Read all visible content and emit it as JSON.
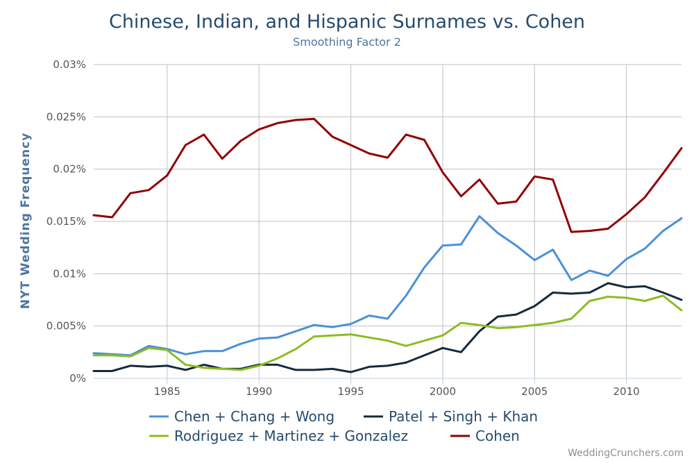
{
  "chart_data": {
    "type": "line",
    "title": "Chinese, Indian, and Hispanic Surnames vs. Cohen",
    "subtitle": "Smoothing Factor 2",
    "ylabel": "NYT Wedding Frequency",
    "xlabel": "",
    "xlim": [
      1981,
      2013
    ],
    "ylim": [
      0,
      0.03
    ],
    "x_ticks": [
      1985,
      1990,
      1995,
      2000,
      2005,
      2010
    ],
    "x_tick_labels": [
      "1985",
      "1990",
      "1995",
      "2000",
      "2005",
      "2010"
    ],
    "y_ticks": [
      0,
      0.005,
      0.01,
      0.015,
      0.02,
      0.025,
      0.03
    ],
    "y_tick_labels": [
      "0%",
      "0.005%",
      "0.01%",
      "0.015%",
      "0.02%",
      "0.025%",
      "0.03%"
    ],
    "grid": true,
    "legend_position": "bottom",
    "x": [
      1981,
      1982,
      1983,
      1984,
      1985,
      1986,
      1987,
      1988,
      1989,
      1990,
      1991,
      1992,
      1993,
      1994,
      1995,
      1996,
      1997,
      1998,
      1999,
      2000,
      2001,
      2002,
      2003,
      2004,
      2005,
      2006,
      2007,
      2008,
      2009,
      2010,
      2011,
      2012,
      2013
    ],
    "series": [
      {
        "name": "Chen + Chang + Wong",
        "color": "#4a90d9",
        "values": [
          0.0024,
          0.0023,
          0.0022,
          0.0031,
          0.0028,
          0.0023,
          0.0026,
          0.0026,
          0.0033,
          0.0038,
          0.0039,
          0.0045,
          0.0051,
          0.0049,
          0.0052,
          0.006,
          0.0057,
          0.0079,
          0.0106,
          0.0127,
          0.0128,
          0.0155,
          0.0139,
          0.0127,
          0.0113,
          0.0123,
          0.0094,
          0.0103,
          0.0098,
          0.0114,
          0.0124,
          0.0141,
          0.0153
        ]
      },
      {
        "name": "Patel + Singh + Khan",
        "color": "#152a3d",
        "values": [
          0.0007,
          0.0007,
          0.0012,
          0.0011,
          0.0012,
          0.0008,
          0.0013,
          0.0009,
          0.0009,
          0.0013,
          0.0013,
          0.0008,
          0.0008,
          0.0009,
          0.0006,
          0.0011,
          0.0012,
          0.0015,
          0.0022,
          0.0029,
          0.0025,
          0.0045,
          0.0059,
          0.0061,
          0.0069,
          0.0082,
          0.0081,
          0.0082,
          0.0091,
          0.0087,
          0.0088,
          0.0082,
          0.0075
        ]
      },
      {
        "name": "Rodriguez + Martinez + Gonzalez",
        "color": "#8bbc21",
        "values": [
          0.0022,
          0.0022,
          0.0021,
          0.0029,
          0.0027,
          0.0013,
          0.001,
          0.0009,
          0.0008,
          0.0012,
          0.0019,
          0.0028,
          0.004,
          0.0041,
          0.0042,
          0.0039,
          0.0036,
          0.0031,
          0.0036,
          0.0041,
          0.0053,
          0.0051,
          0.0048,
          0.0049,
          0.0051,
          0.0053,
          0.0057,
          0.0074,
          0.0078,
          0.0077,
          0.0074,
          0.0079,
          0.0065
        ]
      },
      {
        "name": "Cohen",
        "color": "#910000",
        "values": [
          0.0156,
          0.0154,
          0.0177,
          0.018,
          0.0194,
          0.0223,
          0.0233,
          0.021,
          0.0227,
          0.0238,
          0.0244,
          0.0247,
          0.0248,
          0.0231,
          0.0223,
          0.0215,
          0.0211,
          0.0233,
          0.0228,
          0.0197,
          0.0174,
          0.019,
          0.0167,
          0.0169,
          0.0193,
          0.019,
          0.014,
          0.0141,
          0.0143,
          0.0157,
          0.0173,
          0.0196,
          0.022
        ]
      }
    ]
  },
  "colors": {
    "grid": "#c0c0c0",
    "axis": "#c0d0e0",
    "title": "#274b6d",
    "subtitle": "#4d759e"
  },
  "credit": "WeddingCrunchers.com"
}
